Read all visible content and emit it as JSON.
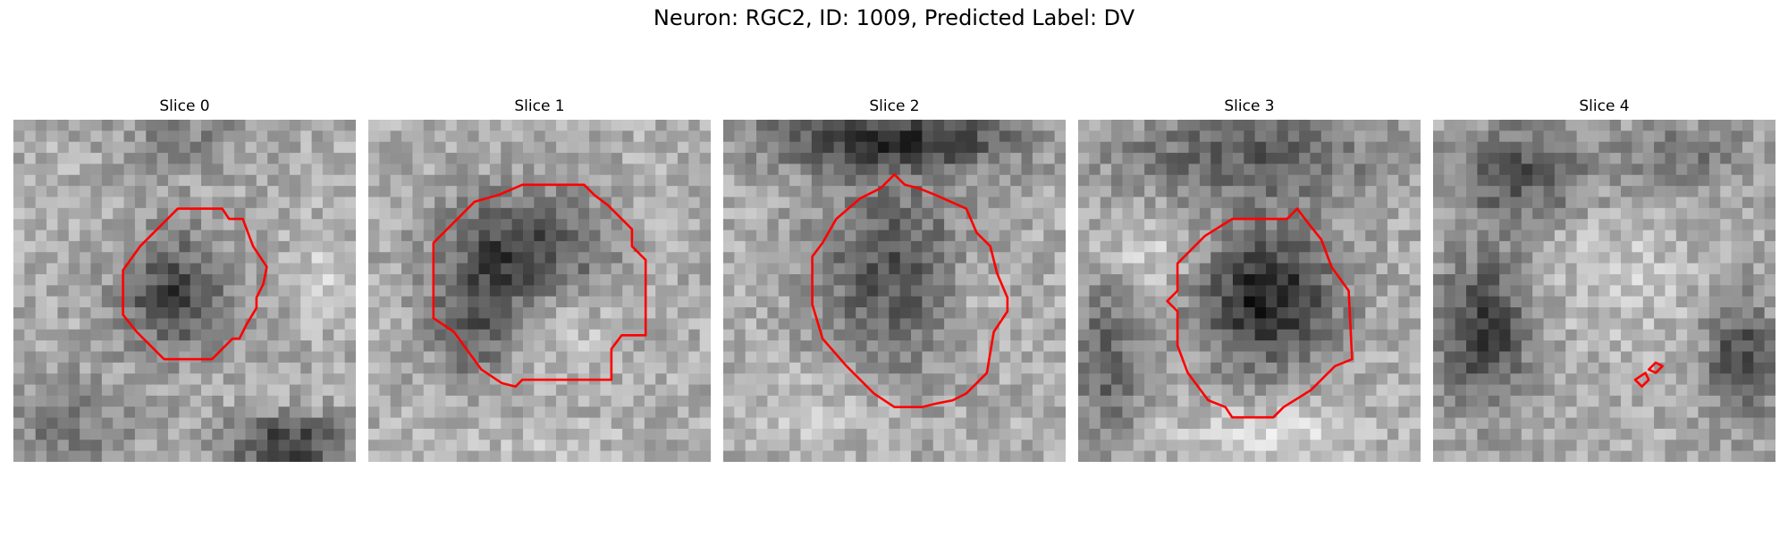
{
  "figure": {
    "title": "Neuron: RGC2, ID: 1009, Predicted Label: DV"
  },
  "panels": [
    {
      "title": "Slice 0"
    },
    {
      "title": "Slice 1"
    },
    {
      "title": "Slice 2"
    },
    {
      "title": "Slice 3"
    },
    {
      "title": "Slice 4"
    }
  ],
  "colors": {
    "contour": "#ff0000",
    "background": "#ffffff"
  },
  "image_colormap": "gray"
}
